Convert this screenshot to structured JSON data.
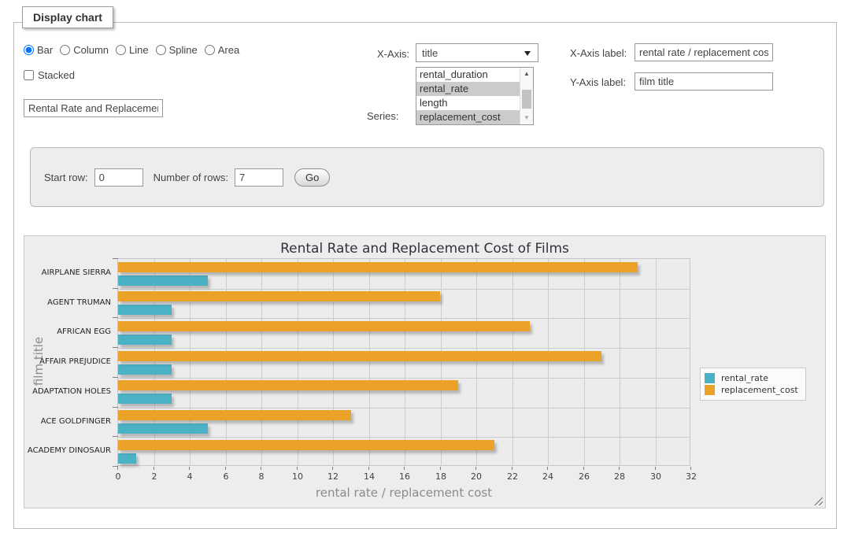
{
  "panel": {
    "legend": "Display chart"
  },
  "controls": {
    "chart_types": [
      {
        "label": "Bar",
        "selected": true
      },
      {
        "label": "Column",
        "selected": false
      },
      {
        "label": "Line",
        "selected": false
      },
      {
        "label": "Spline",
        "selected": false
      },
      {
        "label": "Area",
        "selected": false
      }
    ],
    "stacked": {
      "label": "Stacked",
      "checked": false
    },
    "chart_title_input": {
      "value": "Rental Rate and Replacement Cost of Films"
    },
    "x_axis": {
      "label": "X-Axis:",
      "selected": "title"
    },
    "series_picker": {
      "label": "Series:",
      "options": [
        {
          "label": "rental_duration",
          "selected": false
        },
        {
          "label": "rental_rate",
          "selected": true
        },
        {
          "label": "length",
          "selected": false
        },
        {
          "label": "replacement_cost",
          "selected": true
        }
      ]
    },
    "x_axis_label": {
      "label": "X-Axis label:",
      "value": "rental rate / replacement cost"
    },
    "y_axis_label": {
      "label": "Y-Axis label:",
      "value": "film title"
    }
  },
  "row_controls": {
    "start_row_label": "Start row:",
    "start_row_value": "0",
    "num_rows_label": "Number of rows:",
    "num_rows_value": "7",
    "go_label": "Go"
  },
  "chart_data": {
    "type": "bar",
    "orientation": "horizontal",
    "title": "Rental Rate and Replacement Cost of Films",
    "categories": [
      "AIRPLANE SIERRA",
      "AGENT TRUMAN",
      "AFRICAN EGG",
      "AFFAIR PREJUDICE",
      "ADAPTATION HOLES",
      "ACE GOLDFINGER",
      "ACADEMY DINOSAUR"
    ],
    "series": [
      {
        "name": "rental_rate",
        "color": "#4bb2c5",
        "values": [
          4.99,
          2.99,
          2.99,
          2.99,
          2.99,
          4.99,
          0.99
        ]
      },
      {
        "name": "replacement_cost",
        "color": "#eaa228",
        "values": [
          28.99,
          17.99,
          22.99,
          26.99,
          18.99,
          12.99,
          20.99
        ]
      }
    ],
    "xlabel": "rental rate / replacement cost",
    "ylabel": "film title",
    "xlim": [
      0,
      32
    ],
    "xticks": [
      0,
      2,
      4,
      6,
      8,
      10,
      12,
      14,
      16,
      18,
      20,
      22,
      24,
      26,
      28,
      30,
      32
    ],
    "grid": true,
    "legend_position": "right",
    "colors": {
      "plot_background": "#ececec",
      "gridline": "#cdcdcd"
    }
  }
}
